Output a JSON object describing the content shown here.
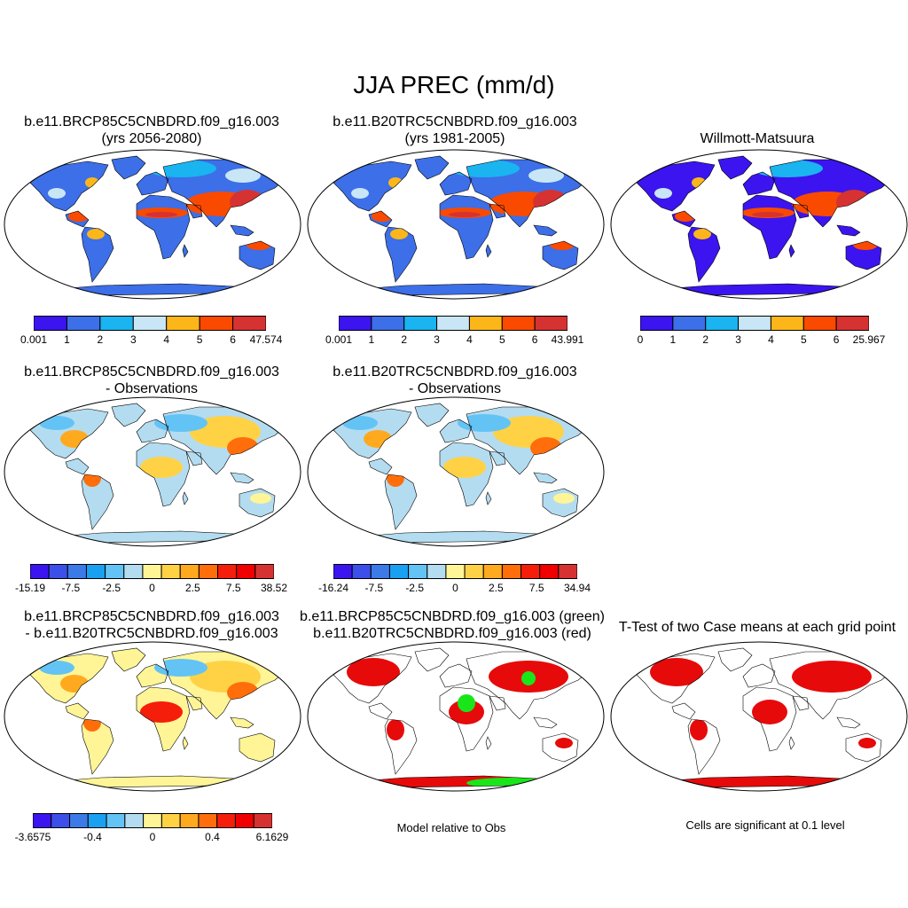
{
  "figure": {
    "title": "JJA PREC (mm/d)"
  },
  "palettes": {
    "mean": [
      "#3c14ef",
      "#3c6fe8",
      "#1ab4f0",
      "#c8e6f5",
      "#fdb61a",
      "#fa4a00",
      "#d63232"
    ],
    "diff": [
      "#3c14ef",
      "#3c4fe8",
      "#3c7ae8",
      "#1aa0f0",
      "#64c3f5",
      "#b4dcf0",
      "#fff596",
      "#ffd246",
      "#ffaa1e",
      "#ff6e0a",
      "#f51e0a",
      "#f00000",
      "#d63232"
    ],
    "sig_model": "#19e619",
    "sig_obs": "#e60a0a",
    "land_outline": "#000000"
  },
  "panels": [
    {
      "id": "p1",
      "title_lines": [
        "b.e11.BRCP85C5CNBDRD.f09_g16.003",
        "(yrs 2056-2080)"
      ],
      "colorbar": {
        "palette": "mean",
        "labels": [
          "0.001",
          "1",
          "2",
          "3",
          "4",
          "5",
          "6",
          "47.574"
        ]
      }
    },
    {
      "id": "p2",
      "title_lines": [
        "b.e11.B20TRC5CNBDRD.f09_g16.003",
        "(yrs 1981-2005)"
      ],
      "colorbar": {
        "palette": "mean",
        "labels": [
          "0.001",
          "1",
          "2",
          "3",
          "4",
          "5",
          "6",
          "43.991"
        ]
      }
    },
    {
      "id": "p3",
      "title_lines": [
        "Willmott-Matsuura"
      ],
      "colorbar": {
        "palette": "mean",
        "labels": [
          "0",
          "1",
          "2",
          "3",
          "4",
          "5",
          "6",
          "25.967"
        ]
      }
    },
    {
      "id": "p4",
      "title_lines": [
        "b.e11.BRCP85C5CNBDRD.f09_g16.003",
        "- Observations"
      ],
      "colorbar": {
        "palette": "diff",
        "labels": [
          "-15.19",
          "-7.5",
          "-2.5",
          "0",
          "2.5",
          "7.5",
          "38.52"
        ]
      }
    },
    {
      "id": "p5",
      "title_lines": [
        "b.e11.B20TRC5CNBDRD.f09_g16.003",
        "- Observations"
      ],
      "colorbar": {
        "palette": "diff",
        "labels": [
          "-16.24",
          "-7.5",
          "-2.5",
          "0",
          "2.5",
          "7.5",
          "34.94"
        ]
      }
    },
    {
      "id": "p6",
      "title_lines": [
        "b.e11.BRCP85C5CNBDRD.f09_g16.003",
        "- b.e11.B20TRC5CNBDRD.f09_g16.003"
      ],
      "colorbar": {
        "palette": "diff",
        "labels": [
          "-3.6575",
          "-0.4",
          "0",
          "0.4",
          "6.1629"
        ]
      }
    },
    {
      "id": "p7",
      "title_lines": [
        "b.e11.BRCP85C5CNBDRD.f09_g16.003 (green)",
        "b.e11.B20TRC5CNBDRD.f09_g16.003 (red)"
      ],
      "caption": "Model relative to Obs"
    },
    {
      "id": "p8",
      "title_lines": [
        "T-Test of two Case means at each grid point"
      ],
      "caption": "Cells are significant at 0.1 level"
    }
  ]
}
